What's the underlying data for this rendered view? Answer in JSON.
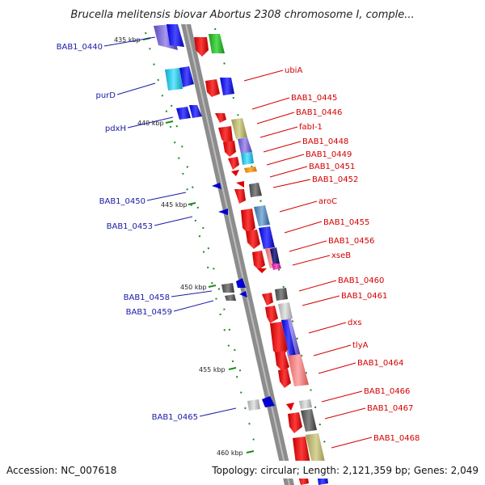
{
  "title": "Brucella melitensis biovar Abortus 2308 chromosome I, comple...",
  "footer": {
    "accession": "Accession: NC_007618",
    "topology": "Topology: circular; Length: 2,121,359 bp; Genes: 2,049"
  },
  "colors": {
    "backbone": "#8c8c8c",
    "gc_tick": "#1f8a1f",
    "label_left": "#1a1aa8",
    "label_right": "#d40000"
  },
  "kbp_ticks": [
    "435 kbp",
    "440 kbp",
    "445 kbp",
    "450 kbp",
    "455 kbp",
    "460 kbp"
  ],
  "left_labels": [
    "BAB1_0440",
    "purD",
    "pdxH",
    "BAB1_0450",
    "BAB1_0453",
    "BAB1_0458",
    "BAB1_0459",
    "BAB1_0465"
  ],
  "right_labels": [
    "ubiA",
    "BAB1_0445",
    "BAB1_0446",
    "fabI-1",
    "BAB1_0448",
    "BAB1_0449",
    "BAB1_0451",
    "BAB1_0452",
    "aroC",
    "BAB1_0455",
    "BAB1_0456",
    "xseB",
    "BAB1_0460",
    "BAB1_0461",
    "dxs",
    "tlyA",
    "BAB1_0464",
    "BAB1_0466",
    "BAB1_0467",
    "BAB1_0468"
  ]
}
